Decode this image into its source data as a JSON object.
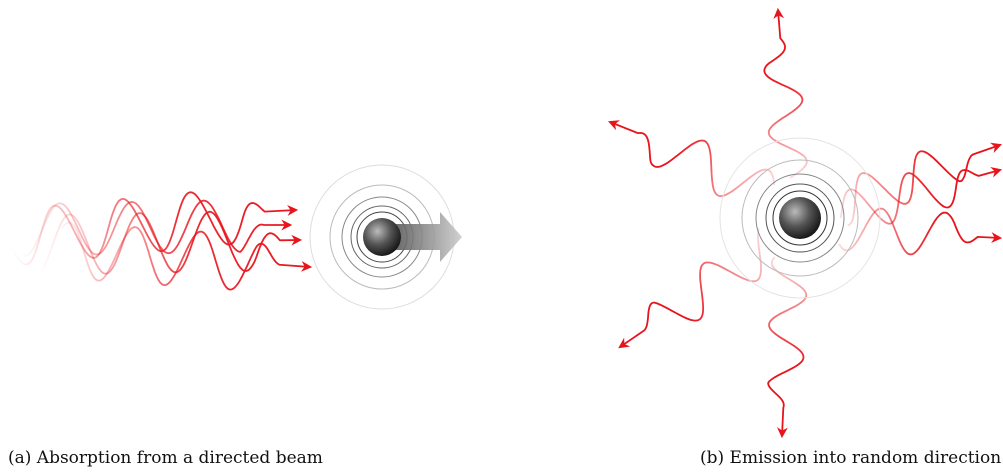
{
  "panels": [
    {
      "caption": "(a) Absorption from a directed beam"
    },
    {
      "caption": "(b) Emission into random direction"
    }
  ]
}
